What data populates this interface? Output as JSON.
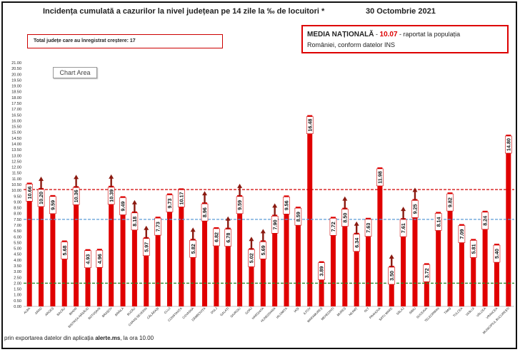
{
  "header": {
    "title": "Incidența cumulată a cazurilor la nivel județean pe 14 zile la ‰ de locuitori *",
    "date": "30 Octombrie 2021"
  },
  "total_box": {
    "text": "Total județe care au înregistrat creștere:  17"
  },
  "media_box": {
    "label": "MEDIA NAȚIONALĂ",
    "sep": " - ",
    "value": "10.07",
    "suffix": " -  raportat la populația",
    "line2": "României, conform datelor INS"
  },
  "chart_area_label": "Chart Area",
  "footer": {
    "prefix": "prin exportarea datelor din aplicația ",
    "app": "alerte.ms",
    "suffix": ", la ora 10.00"
  },
  "colors": {
    "bar": "#e00000",
    "arrow": "#8b1a10",
    "national_line": "#d00000",
    "blue_line": "#5b9bd5",
    "green_line": "#2e8b2e"
  },
  "chart_data": {
    "type": "bar",
    "ylim": [
      0,
      21
    ],
    "yticks": [
      "0.00",
      "0.50",
      "1.00",
      "1.50",
      "2.00",
      "2.50",
      "3.00",
      "3.50",
      "4.00",
      "4.50",
      "5.00",
      "5.50",
      "6.00",
      "6.50",
      "7.00",
      "7.50",
      "8.00",
      "8.50",
      "9.00",
      "9.50",
      "10.00",
      "10.50",
      "11.00",
      "11.50",
      "12.00",
      "12.50",
      "13.00",
      "13.50",
      "14.00",
      "14.50",
      "15.00",
      "15.50",
      "16.00",
      "16.50",
      "17.00",
      "17.50",
      "18.00",
      "18.50",
      "19.00",
      "19.50",
      "20.00",
      "20.50",
      "21.00"
    ],
    "categories": [
      "ALBA",
      "ARAD",
      "ARGEȘ",
      "BACĂU",
      "BIHOR",
      "BISTRIȚA-NĂSĂUD",
      "BOTOȘANI",
      "BRAȘOV",
      "BRĂILA",
      "BUZĂU",
      "CARAȘ-SEVERIN",
      "CĂLĂRAȘI",
      "CLUJ",
      "CONSTANȚA",
      "COVASNA",
      "DÂMBOVIȚA",
      "DOLJ",
      "GALAȚI",
      "GIURGIU",
      "GORJ",
      "HARGHITA",
      "HUNEDOARA",
      "IALOMIȚA",
      "IAȘI",
      "ILFOV",
      "MARAMUREȘ",
      "MEHEDINȚI",
      "MUREȘ",
      "NEAMȚ",
      "OLT",
      "PRAHOVA",
      "SATU MARE",
      "SĂLAJ",
      "SIBIU",
      "SUCEAVA",
      "TELEORMAN",
      "TIMIȘ",
      "TULCEA",
      "VASLUI",
      "VÂLCEA",
      "VRANCEA",
      "MUNICIPIUL BUCUREȘTI"
    ],
    "values": [
      10.66,
      10.2,
      9.59,
      5.68,
      10.36,
      4.93,
      4.96,
      10.39,
      9.49,
      8.18,
      5.97,
      7.73,
      9.73,
      10.17,
      5.82,
      8.96,
      6.82,
      6.78,
      9.59,
      5.02,
      5.69,
      7.9,
      9.56,
      8.59,
      16.48,
      3.89,
      7.72,
      8.5,
      6.34,
      7.63,
      11.98,
      3.5,
      7.61,
      9.25,
      3.72,
      8.14,
      9.82,
      7.09,
      5.81,
      8.24,
      5.4,
      14.8
    ],
    "labels": [
      "10.66",
      "10.20",
      "9.59",
      "5.68",
      "10.36",
      "4.93",
      "4.96",
      "10.39",
      "9.49",
      "8.18",
      "5.97",
      "7.73",
      "9.73",
      "10.17",
      "5.82",
      "8.96",
      "6.82",
      "6.78",
      "9.59",
      "5.02",
      "5.69",
      "7.90",
      "9.56",
      "8.59",
      "16.48",
      "3.89",
      "7.72",
      "8.50",
      "6.34",
      "7.63",
      "11.98",
      "3.50",
      "7.61",
      "9.25",
      "3.72",
      "8.14",
      "9.82",
      "7.09",
      "5.81",
      "8.24",
      "5.40",
      "14.80"
    ],
    "increase": [
      false,
      true,
      false,
      false,
      true,
      false,
      false,
      true,
      false,
      true,
      true,
      false,
      false,
      false,
      true,
      true,
      false,
      true,
      true,
      true,
      true,
      true,
      false,
      false,
      false,
      false,
      false,
      true,
      true,
      false,
      false,
      true,
      true,
      true,
      false,
      false,
      false,
      false,
      false,
      false,
      false,
      false
    ],
    "reference_lines": [
      {
        "value": 10.07,
        "color": "#d00000"
      },
      {
        "value": 7.5,
        "color": "#5b9bd5"
      },
      {
        "value": 2.0,
        "color": "#2e8b2e"
      }
    ],
    "grid": false,
    "legend": "none"
  }
}
